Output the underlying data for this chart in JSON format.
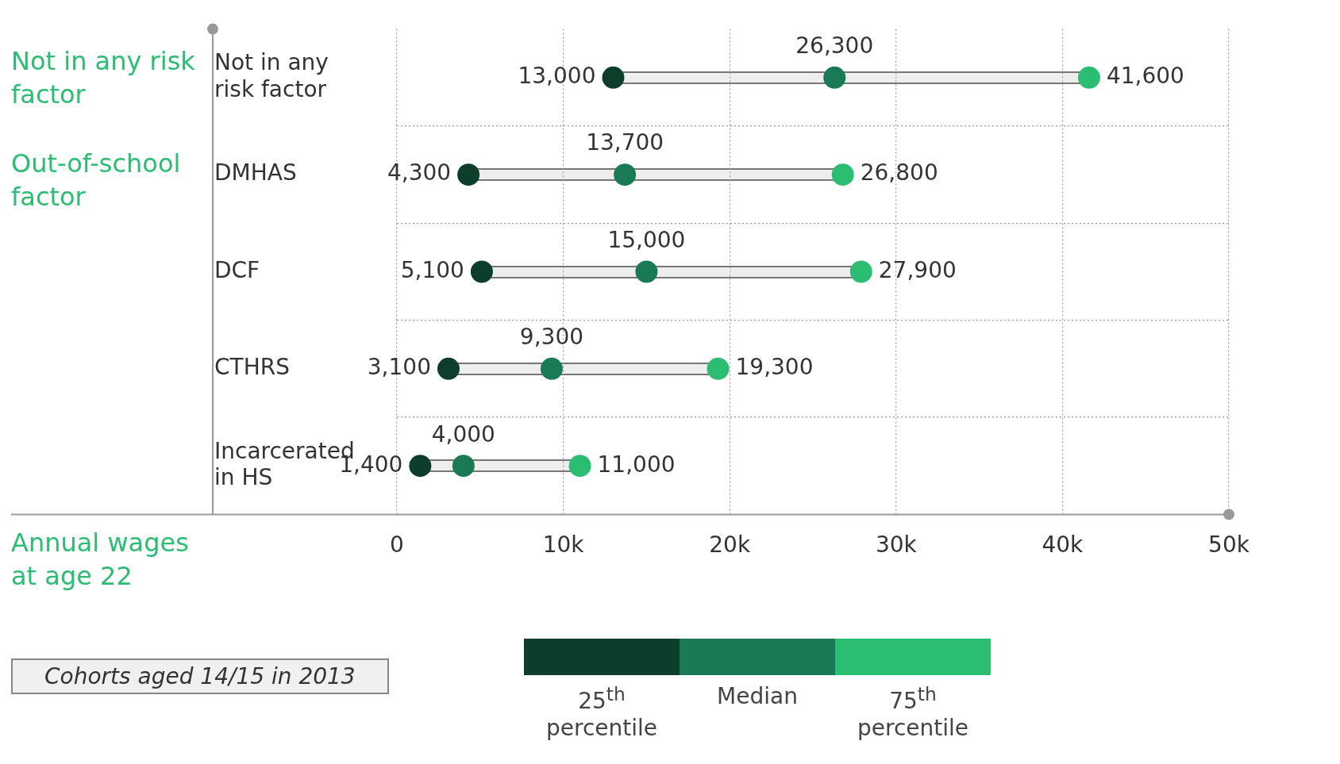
{
  "chart_data": {
    "type": "scatter",
    "orientation": "horizontal",
    "xlabel": "Annual wages at age 22",
    "categories": [
      "Not in any risk factor",
      "DMHAS",
      "DCF",
      "CTHRS",
      "Incarcerated in HS"
    ],
    "series": [
      {
        "name": "25$^{th}$ percentile",
        "color": "#0d3d2b",
        "values": [
          13000,
          4300,
          5100,
          3100,
          1400
        ],
        "value_labels": [
          "13,000",
          "4,300",
          "5,100",
          "3,100",
          "1,400"
        ]
      },
      {
        "name": "Median",
        "color": "#1a7a55",
        "values": [
          26300,
          13700,
          15000,
          9300,
          4000
        ],
        "value_labels": [
          "26,300",
          "13,700",
          "15,000",
          "9,300",
          "4,000"
        ]
      },
      {
        "name": "75$^{th}$ percentile",
        "color": "#2bbd72",
        "values": [
          41600,
          26800,
          27900,
          19300,
          11000
        ],
        "value_labels": [
          "41,600",
          "26,800",
          "27,900",
          "19,300",
          "11,000"
        ]
      }
    ],
    "xlim": [
      0,
      50000
    ],
    "xticks": [
      0,
      {
        "value": 10000,
        "label": "10k"
      },
      {
        "value": 20000,
        "label": "20k"
      },
      {
        "value": 30000,
        "label": "30k"
      },
      {
        "value": 40000,
        "label": "40k"
      },
      {
        "value": 50000,
        "label": "50k"
      }
    ],
    "grid": true,
    "legend": "bottom",
    "marker": "circle",
    "annotations": [
      "Not in any risk factor",
      "Out-of-school factor",
      "Cohorts aged 14/15 in 2013"
    ]
  }
}
